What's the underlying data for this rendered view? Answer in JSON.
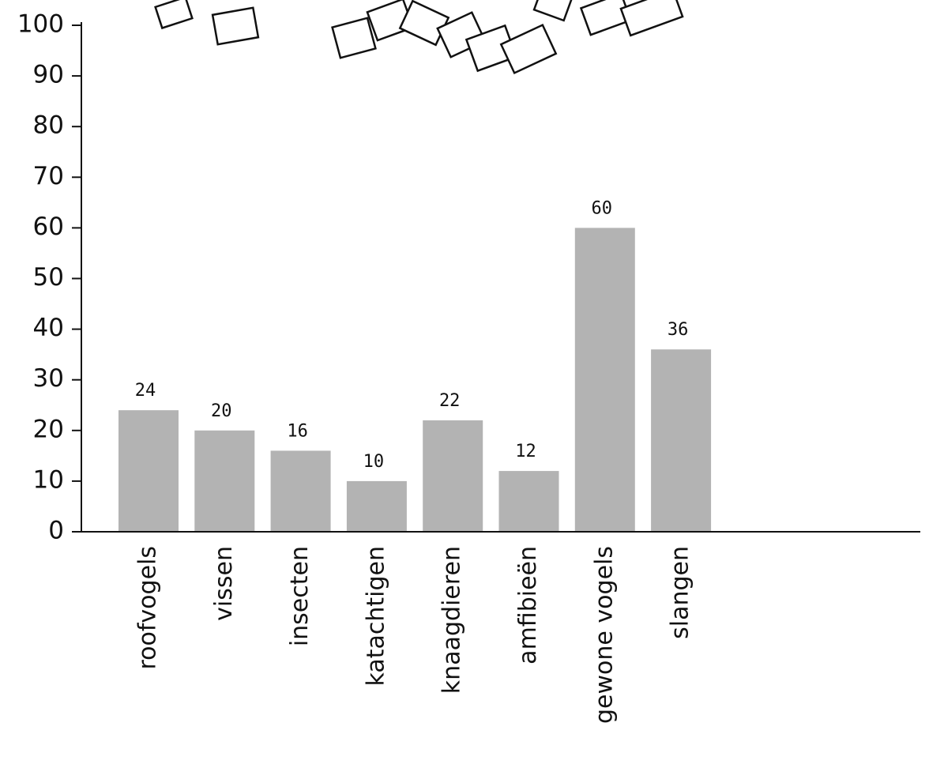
{
  "chart_data": {
    "type": "bar",
    "categories": [
      "roofvogels",
      "vissen",
      "insecten",
      "katachtigen",
      "knaagdieren",
      "amfibieën",
      "gewone vogels",
      "slangen"
    ],
    "values": [
      24,
      20,
      16,
      10,
      22,
      12,
      60,
      36
    ],
    "color": "#b3b3b3",
    "ylim": [
      0,
      100
    ],
    "yticks": [
      0,
      10,
      20,
      30,
      40,
      50,
      60,
      70,
      80,
      90,
      100
    ],
    "grid": false
  }
}
